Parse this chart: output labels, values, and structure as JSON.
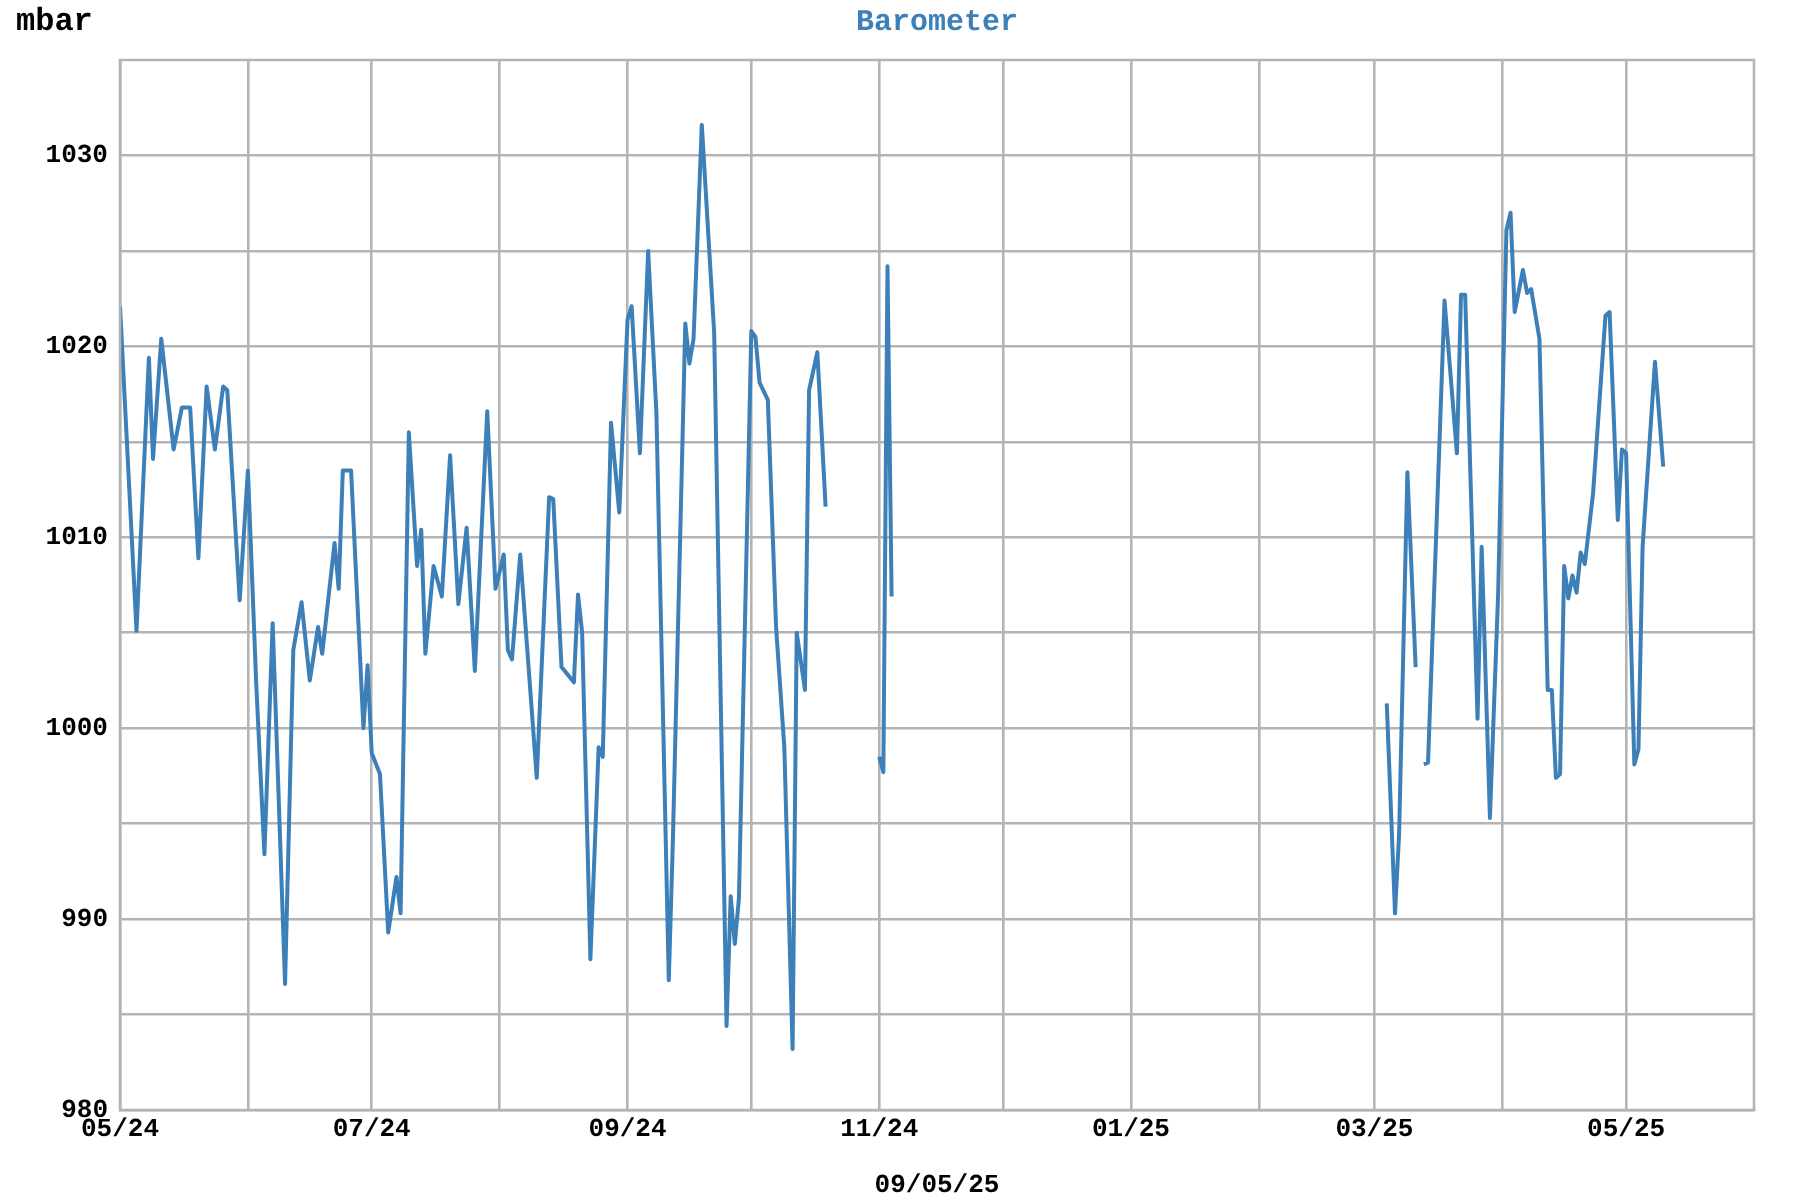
{
  "chart_data": {
    "type": "line",
    "title": "Barometer",
    "ylabel": "mbar",
    "xlabel": "09/05/25",
    "grid": true,
    "marker": "none",
    "line_style": "solid",
    "xlim": [
      "2024-05-01",
      "2025-06-01"
    ],
    "xticks": [
      {
        "value": "2024-05-01",
        "label": "05/24"
      },
      {
        "value": "2024-06-01",
        "label": null
      },
      {
        "value": "2024-07-01",
        "label": "07/24"
      },
      {
        "value": "2024-08-01",
        "label": null
      },
      {
        "value": "2024-09-01",
        "label": "09/24"
      },
      {
        "value": "2024-10-01",
        "label": null
      },
      {
        "value": "2024-11-01",
        "label": "11/24"
      },
      {
        "value": "2024-12-01",
        "label": null
      },
      {
        "value": "2025-01-01",
        "label": "01/25"
      },
      {
        "value": "2025-02-01",
        "label": null
      },
      {
        "value": "2025-03-01",
        "label": "03/25"
      },
      {
        "value": "2025-04-01",
        "label": null
      },
      {
        "value": "2025-05-01",
        "label": "05/25"
      }
    ],
    "ylim": [
      980,
      1035
    ],
    "yticks": [
      980,
      {
        "value": 985,
        "label": null
      },
      990,
      {
        "value": 995,
        "label": null
      },
      1000,
      {
        "value": 1005,
        "label": null
      },
      1010,
      {
        "value": 1015,
        "label": null
      },
      1020,
      {
        "value": 1025,
        "label": null
      },
      1030
    ],
    "x": [
      "2024-05-01",
      "2024-05-05",
      "2024-05-08",
      "2024-05-09",
      "2024-05-11",
      "2024-05-14",
      "2024-05-16",
      "2024-05-18",
      "2024-05-20",
      "2024-05-22",
      "2024-05-24",
      "2024-05-26",
      "2024-05-27",
      "2024-05-30",
      "2024-06-01",
      "2024-06-03",
      "2024-06-05",
      "2024-06-07",
      "2024-06-10",
      "2024-06-12",
      "2024-06-14",
      "2024-06-16",
      "2024-06-18",
      "2024-06-19",
      "2024-06-22",
      "2024-06-23",
      "2024-06-24",
      "2024-06-26",
      "2024-06-29",
      "2024-06-30",
      "2024-07-01",
      "2024-07-03",
      "2024-07-05",
      "2024-07-07",
      "2024-07-08",
      "2024-07-10",
      "2024-07-12",
      "2024-07-13",
      "2024-07-14",
      "2024-07-16",
      "2024-07-18",
      "2024-07-20",
      "2024-07-22",
      "2024-07-24",
      "2024-07-26",
      "2024-07-29",
      "2024-07-31",
      "2024-08-02",
      "2024-08-03",
      "2024-08-04",
      "2024-08-06",
      "2024-08-10",
      "2024-08-13",
      "2024-08-14",
      "2024-08-16",
      "2024-08-19",
      "2024-08-20",
      "2024-08-21",
      "2024-08-23",
      "2024-08-25",
      "2024-08-26",
      "2024-08-28",
      "2024-08-30",
      "2024-09-01",
      "2024-09-02",
      "2024-09-04",
      "2024-09-06",
      "2024-09-08",
      "2024-09-11",
      "2024-09-12",
      "2024-09-15",
      "2024-09-16",
      "2024-09-17",
      "2024-09-19",
      "2024-09-22",
      "2024-09-25",
      "2024-09-26",
      "2024-09-27",
      "2024-09-28",
      "2024-10-01",
      "2024-10-02",
      "2024-10-03",
      "2024-10-05",
      "2024-10-07",
      "2024-10-09",
      "2024-10-11",
      "2024-10-12",
      "2024-10-14",
      "2024-10-15",
      "2024-10-17",
      "2024-10-19",
      "2024-10-25",
      "2024-11-01",
      "2024-11-02",
      "2024-11-03",
      "2024-11-04",
      "2024-12-01",
      "2025-03-04",
      "2025-03-06",
      "2025-03-07",
      "2025-03-09",
      "2025-03-11",
      "2025-03-12",
      "2025-03-13",
      "2025-03-14",
      "2025-03-18",
      "2025-03-21",
      "2025-03-22",
      "2025-03-23",
      "2025-03-26",
      "2025-03-27",
      "2025-03-29",
      "2025-03-31",
      "2025-04-02",
      "2025-04-03",
      "2025-04-04",
      "2025-04-06",
      "2025-04-07",
      "2025-04-08",
      "2025-04-10",
      "2025-04-12",
      "2025-04-13",
      "2025-04-14",
      "2025-04-15",
      "2025-04-16",
      "2025-04-17",
      "2025-04-18",
      "2025-04-19",
      "2025-04-20",
      "2025-04-21",
      "2025-04-23",
      "2025-04-26",
      "2025-04-27",
      "2025-04-29",
      "2025-04-30",
      "2025-05-01",
      "2025-05-03",
      "2025-05-04",
      "2025-05-05",
      "2025-05-08",
      "2025-05-10"
    ],
    "series": [
      {
        "color": "#3d7fb8",
        "values": [
          1022.1,
          1005.1,
          1019.4,
          1014.1,
          1020.4,
          1014.6,
          1016.8,
          1016.8,
          1008.9,
          1017.9,
          1014.6,
          1017.9,
          1017.7,
          1006.7,
          1013.5,
          1002.4,
          993.4,
          1005.5,
          986.6,
          1004.1,
          1006.6,
          1002.5,
          1005.3,
          1003.9,
          1009.7,
          1007.3,
          1013.5,
          1013.5,
          1000.0,
          1003.3,
          998.7,
          997.6,
          989.3,
          992.2,
          990.3,
          1015.5,
          1008.5,
          1010.4,
          1003.9,
          1008.5,
          1006.9,
          1014.3,
          1006.5,
          1010.5,
          1003.0,
          1016.6,
          1007.3,
          1009.1,
          1004.1,
          1003.6,
          1009.1,
          997.4,
          1012.1,
          1012.0,
          1003.2,
          1002.4,
          1007.0,
          1005.0,
          987.9,
          999.0,
          998.5,
          1016.0,
          1011.3,
          1021.4,
          1022.1,
          1014.4,
          1025.0,
          1016.5,
          986.8,
          994.2,
          1021.2,
          1019.1,
          1020.4,
          1031.6,
          1020.7,
          984.4,
          991.2,
          988.7,
          991.1,
          1020.8,
          1020.5,
          1018.1,
          1017.2,
          1005.3,
          999.0,
          983.2,
          1005.0,
          1002.0,
          1017.7,
          1019.7,
          1011.6,
          null,
          998.5,
          997.7,
          1024.2,
          1006.9,
          null,
          1001.3,
          990.3,
          994.5,
          1013.4,
          1003.2,
          null,
          998.1,
          998.2,
          1022.4,
          1014.4,
          1022.7,
          1022.7,
          1000.5,
          1009.5,
          995.3,
          1007.1,
          1026.1,
          1027.0,
          1021.8,
          1024.0,
          1022.8,
          1023.0,
          1020.4,
          1002.0,
          1002.0,
          997.4,
          997.6,
          1008.5,
          1006.8,
          1008.0,
          1007.1,
          1009.2,
          1008.6,
          1012.3,
          1021.6,
          1021.8,
          1010.9,
          1014.6,
          1014.4,
          998.1,
          998.9,
          1009.5,
          1019.2,
          1013.7
        ]
      }
    ]
  }
}
